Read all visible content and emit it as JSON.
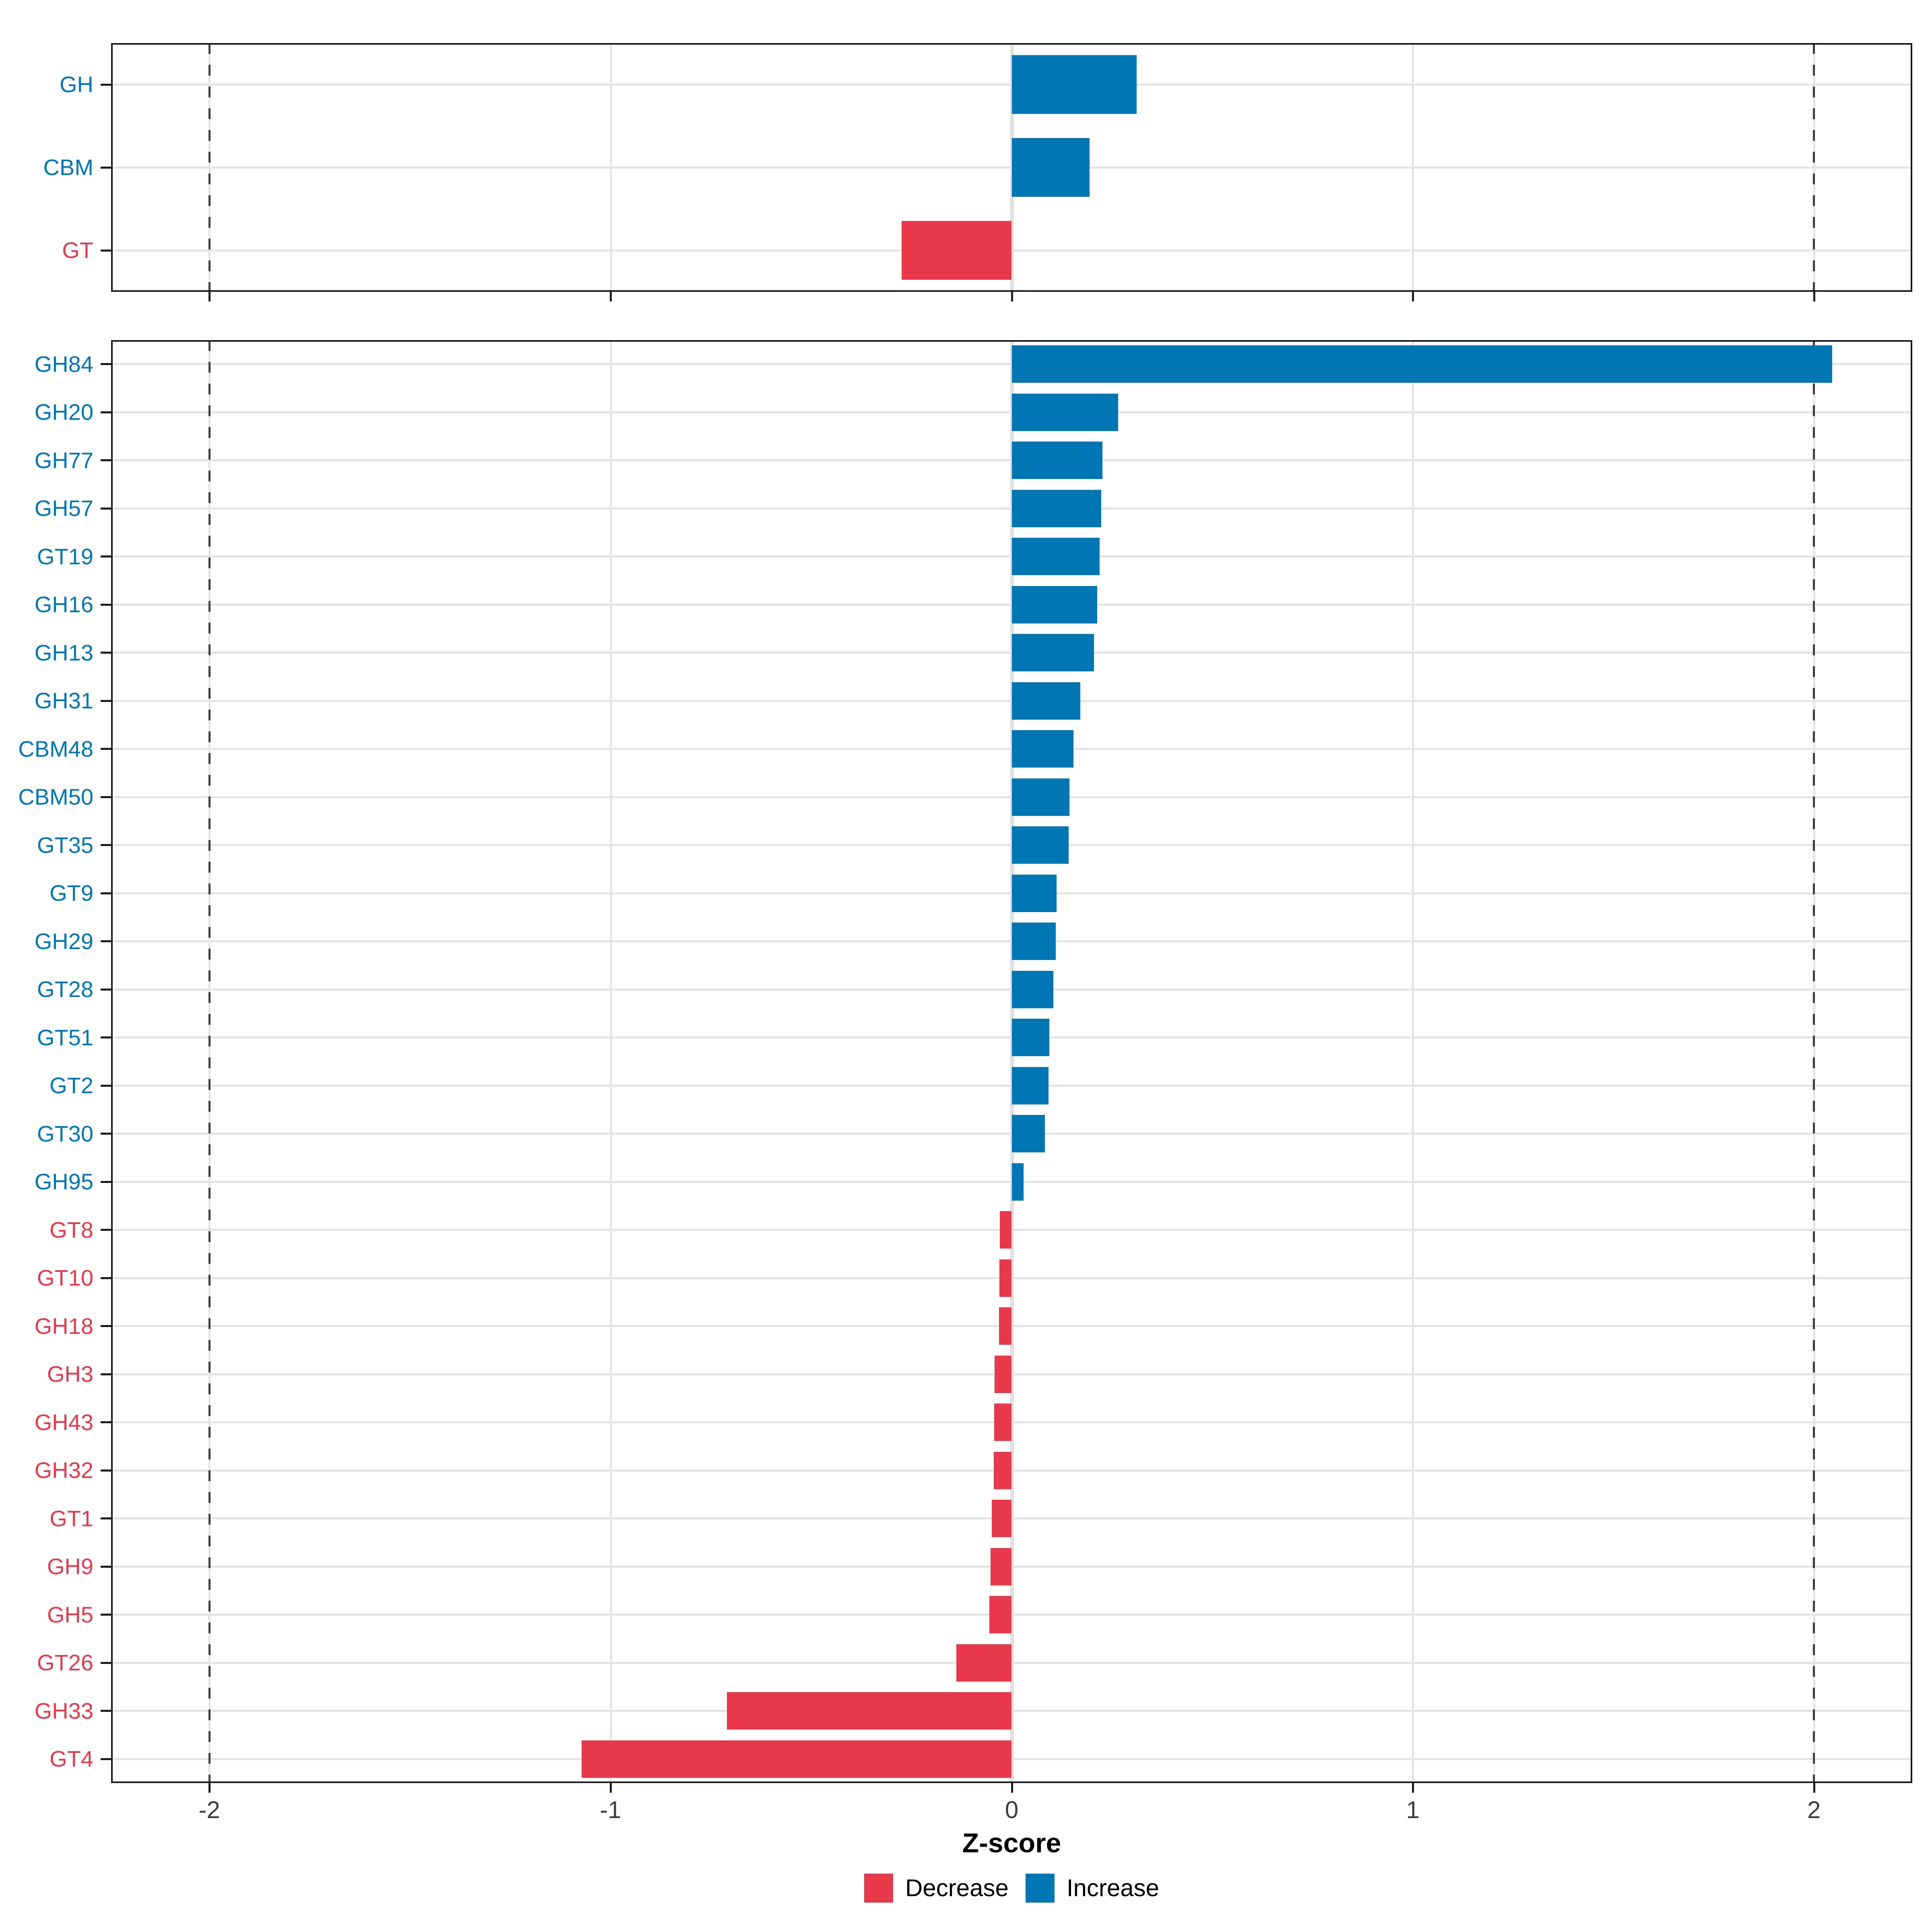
{
  "colors": {
    "increase": "#0076B4",
    "decrease": "#E8394B",
    "grid": "#E3E3E3",
    "dashed_line": "#3C3C3C",
    "axis_text": "#3C3C3C",
    "panel_border": "#1A1A1A",
    "background": "#FFFFFF"
  },
  "legend": {
    "items": [
      {
        "label": "Decrease",
        "color_key": "decrease"
      },
      {
        "label": "Increase",
        "color_key": "increase"
      }
    ]
  },
  "chart_data": {
    "type": "bar",
    "orientation": "horizontal",
    "title": "",
    "xlabel": "Z-score",
    "ylabel": "",
    "xlim": [
      -2.245,
      2.245
    ],
    "x_ticks": [
      -2,
      -1,
      0,
      1,
      2
    ],
    "dashed_vlines": [
      -2,
      2
    ],
    "grid": "on",
    "legend_position": "bottom",
    "panels": [
      {
        "name": "families",
        "categories": [
          "GH",
          "CBM",
          "GT"
        ],
        "values": [
          0.312,
          0.194,
          -0.274
        ]
      },
      {
        "name": "subfamilies",
        "categories": [
          "GH84",
          "GH20",
          "GH77",
          "GH57",
          "GT19",
          "GH16",
          "GH13",
          "GH31",
          "CBM48",
          "CBM50",
          "GT35",
          "GT9",
          "GH29",
          "GT28",
          "GT51",
          "GT2",
          "GT30",
          "GH95",
          "GT8",
          "GT10",
          "GH18",
          "GH3",
          "GH43",
          "GH32",
          "GT1",
          "GH9",
          "GH5",
          "GT26",
          "GH33",
          "GT4"
        ],
        "values": [
          2.045,
          0.265,
          0.226,
          0.223,
          0.219,
          0.213,
          0.205,
          0.171,
          0.154,
          0.144,
          0.142,
          0.112,
          0.11,
          0.104,
          0.094,
          0.092,
          0.083,
          0.03,
          -0.03,
          -0.031,
          -0.032,
          -0.043,
          -0.044,
          -0.045,
          -0.05,
          -0.053,
          -0.056,
          -0.138,
          -0.71,
          -1.072
        ]
      }
    ]
  }
}
